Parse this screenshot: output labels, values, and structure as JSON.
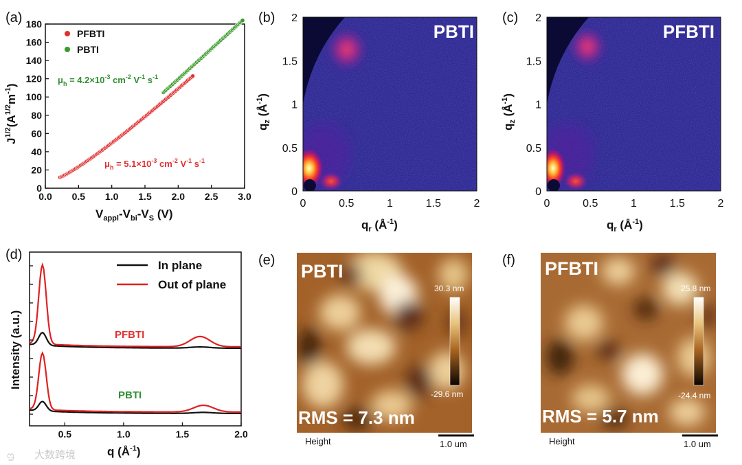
{
  "chart_data": [
    {
      "panel": "(a)",
      "type": "scatter",
      "xlabel": "V",
      "xlabel_sub1": "appl",
      "xlabel_mid1": "-V",
      "xlabel_sub2": "bi",
      "xlabel_mid2": "-V",
      "xlabel_sub3": "S",
      "xlabel_tail": " (V)",
      "ylabel": "J",
      "ylabel_sup": "1/2",
      "ylabel_mid": "(A",
      "ylabel_sup2": "1/2",
      "ylabel_tail": "m",
      "ylabel_sup3": "-1",
      "ylabel_end": ")",
      "xlim": [
        0.0,
        3.0
      ],
      "ylim": [
        0,
        180
      ],
      "xticks": [
        "0.0",
        "0.5",
        "1.0",
        "1.5",
        "2.0",
        "2.5",
        "3.0"
      ],
      "yticks": [
        "0",
        "20",
        "40",
        "60",
        "80",
        "100",
        "120",
        "140",
        "160",
        "180"
      ],
      "series": [
        {
          "name": "PFBTI",
          "color": "#e03030",
          "x": [
            0.22,
            2.22
          ],
          "y": [
            12,
            123
          ],
          "curve": 1.15
        },
        {
          "name": "PBTI",
          "color": "#3a9a2a",
          "x": [
            1.78,
            2.97
          ],
          "y": [
            105,
            184
          ],
          "curve": 1.0
        }
      ],
      "annotations": [
        {
          "mu": "μ",
          "sub": "h",
          "text": " = 4.2×10",
          "exp": "-3",
          "unit": " cm",
          "unit_exp": "-2",
          "unit2": " V",
          "unit2_exp": "-1",
          "unit3": " s",
          "unit3_exp": "-1",
          "color": "#2f8f2f"
        },
        {
          "mu": "μ",
          "sub": "h",
          "text": " = 5.1×10",
          "exp": "-3",
          "unit": " cm",
          "unit_exp": "-2",
          "unit2": " V",
          "unit2_exp": "-1",
          "unit3": " s",
          "unit3_exp": "-1",
          "color": "#e03030"
        }
      ]
    },
    {
      "panel": "(b)",
      "type": "heatmap",
      "title": "PBTI",
      "xlabel": "q",
      "xlabel_sub": "r",
      "xlabel_tail": " (Å",
      "xlabel_sup": "-1",
      "xlabel_end": ")",
      "ylabel": "q",
      "ylabel_sub": "z",
      "ylabel_tail": " (Å",
      "ylabel_sup": "-1",
      "ylabel_end": ")",
      "xlim": [
        0,
        2
      ],
      "ylim": [
        0,
        2
      ],
      "xticks": [
        "0",
        "0.5",
        "1",
        "1.5",
        "2"
      ],
      "yticks": [
        "0",
        "0.5",
        "1",
        "1.5",
        "2"
      ]
    },
    {
      "panel": "(c)",
      "type": "heatmap",
      "title": "PFBTI",
      "xlabel": "q",
      "xlabel_sub": "r",
      "xlabel_tail": " (Å",
      "xlabel_sup": "-1",
      "xlabel_end": ")",
      "ylabel": "q",
      "ylabel_sub": "z",
      "ylabel_tail": " (Å",
      "ylabel_sup": "-1",
      "ylabel_end": ")",
      "xlim": [
        0,
        2
      ],
      "ylim": [
        0,
        2
      ],
      "xticks": [
        "0",
        "0.5",
        "1",
        "1.5",
        "2"
      ],
      "yticks": [
        "0",
        "0.5",
        "1",
        "1.5",
        "2"
      ]
    },
    {
      "panel": "(d)",
      "type": "line",
      "xlabel": "q (Å",
      "xlabel_sup": "-1",
      "xlabel_end": ")",
      "ylabel": "Intensity (a.u.)",
      "xlim": [
        0.2,
        2.0
      ],
      "xticks": [
        "0.5",
        "1.0",
        "1.5",
        "2.0"
      ],
      "legend": [
        {
          "name": "In plane",
          "color": "#111111"
        },
        {
          "name": "Out of plane",
          "color": "#e02020"
        }
      ],
      "groups": [
        {
          "label": "PFBTI",
          "label_color": "#e03030",
          "peak_q": 0.31,
          "oop_peak": 1.0,
          "ip_peak": 0.16,
          "secondary_q": 1.65,
          "secondary_height": 0.13
        },
        {
          "label": "PBTI",
          "label_color": "#2f8f2f",
          "peak_q": 0.31,
          "oop_peak": 0.84,
          "ip_peak": 0.14,
          "secondary_q": 1.68,
          "secondary_height": 0.1
        }
      ]
    },
    {
      "panel": "(e)",
      "type": "heatmap",
      "title": "PBTI",
      "rms": "RMS = 7.3 nm",
      "scale_max": "30.3 nm",
      "scale_min": "-29.6 nm",
      "channel": "Height",
      "scalebar": "1.0 um"
    },
    {
      "panel": "(f)",
      "type": "heatmap",
      "title": "PFBTI",
      "rms": "RMS = 5.7 nm",
      "scale_max": "25.8 nm",
      "scale_min": "-24.4 nm",
      "channel": "Height",
      "scalebar": "1.0 um"
    }
  ],
  "watermark": "大数跨境"
}
